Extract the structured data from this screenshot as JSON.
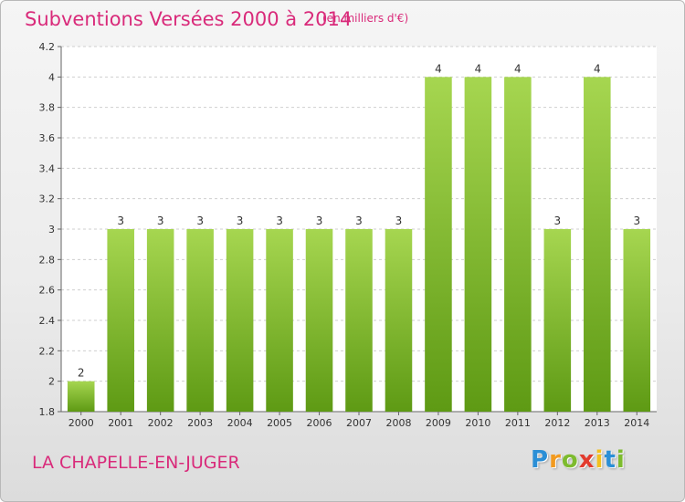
{
  "header": {
    "title": "Subventions Versées 2000 à 2014",
    "subtitle": "(en milliers d'€)"
  },
  "footer": {
    "commune": "LA CHAPELLE-EN-JUGER",
    "logo_letters": [
      {
        "ch": "P",
        "color": "#2b8fd6"
      },
      {
        "ch": "r",
        "color": "#f29a1f"
      },
      {
        "ch": "o",
        "color": "#7dbb2e"
      },
      {
        "ch": "x",
        "color": "#e23b2e"
      },
      {
        "ch": "i",
        "color": "#f2c01f"
      },
      {
        "ch": "t",
        "color": "#2b8fd6"
      },
      {
        "ch": "i",
        "color": "#7dbb2e"
      }
    ]
  },
  "colors": {
    "bar_top": "#a6d650",
    "bar_bottom": "#5e9a14",
    "grid": "#cfcfcf",
    "text_accent": "#d92a7a"
  },
  "chart_data": {
    "type": "bar",
    "categories": [
      "2000",
      "2001",
      "2002",
      "2003",
      "2004",
      "2005",
      "2006",
      "2007",
      "2008",
      "2009",
      "2010",
      "2011",
      "2012",
      "2013",
      "2014"
    ],
    "values": [
      2,
      3,
      3,
      3,
      3,
      3,
      3,
      3,
      3,
      4,
      4,
      4,
      3,
      4,
      3
    ],
    "data_labels": [
      "2",
      "3",
      "3",
      "3",
      "3",
      "3",
      "3",
      "3",
      "3",
      "4",
      "4",
      "4",
      "3",
      "4",
      "3"
    ],
    "ylim": [
      1.8,
      4.2
    ],
    "yticks": [
      1.8,
      2,
      2.2,
      2.4,
      2.6,
      2.8,
      3,
      3.2,
      3.4,
      3.6,
      3.8,
      4,
      4.2
    ],
    "ytick_labels": [
      "1.8",
      "2",
      "2.2",
      "2.4",
      "2.6",
      "2.8",
      "3",
      "3.2",
      "3.4",
      "3.6",
      "3.8",
      "4",
      "4.2"
    ],
    "grid": true
  }
}
